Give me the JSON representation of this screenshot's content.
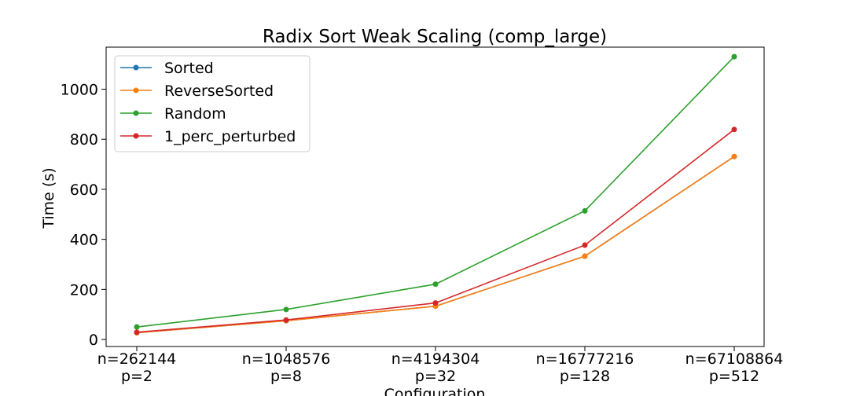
{
  "chart_data": {
    "type": "line",
    "title": "Radix Sort Weak Scaling (comp_large)",
    "xlabel": "Configuration",
    "ylabel": "Time (s)",
    "categories": [
      [
        "n=262144",
        "p=2"
      ],
      [
        "n=1048576",
        "p=8"
      ],
      [
        "n=4194304",
        "p=32"
      ],
      [
        "n=16777216",
        "p=128"
      ],
      [
        "n=67108864",
        "p=512"
      ]
    ],
    "ylim": [
      -28,
      1168
    ],
    "yticks": [
      0,
      200,
      400,
      600,
      800,
      1000
    ],
    "grid": false,
    "legend_position": "top-left",
    "series": [
      {
        "name": "Sorted",
        "color": "#1f77b4",
        "values": [
          27,
          75,
          133,
          333,
          731
        ]
      },
      {
        "name": "ReverseSorted",
        "color": "#ff7f0e",
        "values": [
          27,
          75,
          133,
          333,
          731
        ]
      },
      {
        "name": "Random",
        "color": "#2ca02c",
        "values": [
          50,
          120,
          221,
          514,
          1130
        ]
      },
      {
        "name": "1_perc_perturbed",
        "color": "#d62728",
        "values": [
          29,
          78,
          146,
          377,
          839
        ]
      }
    ]
  }
}
